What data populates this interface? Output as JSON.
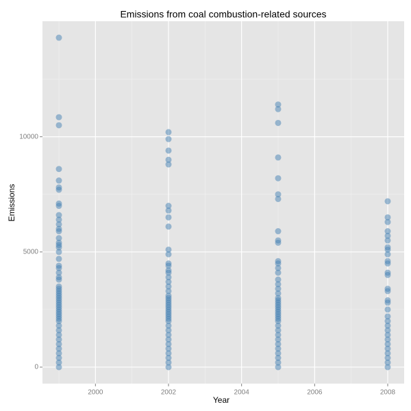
{
  "chart_data": {
    "type": "scatter",
    "title": "Emissions from coal combustion-related sources",
    "x_label": "Year",
    "y_label": "Emissions",
    "color": "#4682b4",
    "opacity": 0.5,
    "grid": true,
    "xlim": [
      1998.55,
      2008.45
    ],
    "xticks": [
      2000,
      2002,
      2004,
      2006,
      2008
    ],
    "x_minor_grid": [
      1999,
      2001,
      2003,
      2005,
      2007
    ],
    "ylim": [
      -715,
      15015
    ],
    "yticks": [
      0,
      5000,
      10000
    ],
    "y_minor_grid": [
      2500,
      7500,
      12500
    ],
    "groups": [
      {
        "x": 1999,
        "values": [
          14300,
          10850,
          10500,
          8600,
          8100,
          7800,
          7700,
          7100,
          7000,
          6600,
          6400,
          6200,
          6000,
          5900,
          5600,
          5400,
          5300,
          5200,
          5000,
          4700,
          4400,
          4300,
          4100,
          3900,
          3800,
          3500,
          3400,
          3300,
          3200,
          3100,
          3000,
          2900,
          2800,
          2700,
          2600,
          2500,
          2400,
          2300,
          2200,
          2100,
          2000,
          1800,
          1600,
          1400,
          1200,
          1000,
          800,
          600,
          400,
          200,
          0
        ]
      },
      {
        "x": 2002,
        "values": [
          10200,
          9900,
          9400,
          9000,
          8800,
          7000,
          6800,
          6500,
          6100,
          5100,
          4900,
          4500,
          4400,
          4200,
          4100,
          3900,
          3700,
          3500,
          3300,
          3100,
          3000,
          2900,
          2800,
          2700,
          2600,
          2500,
          2400,
          2300,
          2200,
          2100,
          2000,
          1800,
          1600,
          1400,
          1200,
          1000,
          800,
          600,
          400,
          200,
          0
        ]
      },
      {
        "x": 2005,
        "values": [
          11400,
          11200,
          10600,
          9100,
          8200,
          7500,
          7300,
          5900,
          5500,
          5400,
          4600,
          4500,
          4300,
          4100,
          3800,
          3600,
          3400,
          3200,
          3000,
          2900,
          2800,
          2700,
          2600,
          2500,
          2400,
          2300,
          2200,
          2100,
          2000,
          1800,
          1600,
          1400,
          1200,
          1000,
          800,
          600,
          400,
          200,
          0
        ]
      },
      {
        "x": 2008,
        "values": [
          7200,
          6500,
          6300,
          5900,
          5700,
          5500,
          5200,
          5100,
          4900,
          4600,
          4500,
          4100,
          4000,
          3400,
          3300,
          2900,
          2800,
          2500,
          2200,
          2000,
          1800,
          1600,
          1400,
          1200,
          1000,
          800,
          600,
          400,
          200,
          0
        ]
      }
    ]
  }
}
